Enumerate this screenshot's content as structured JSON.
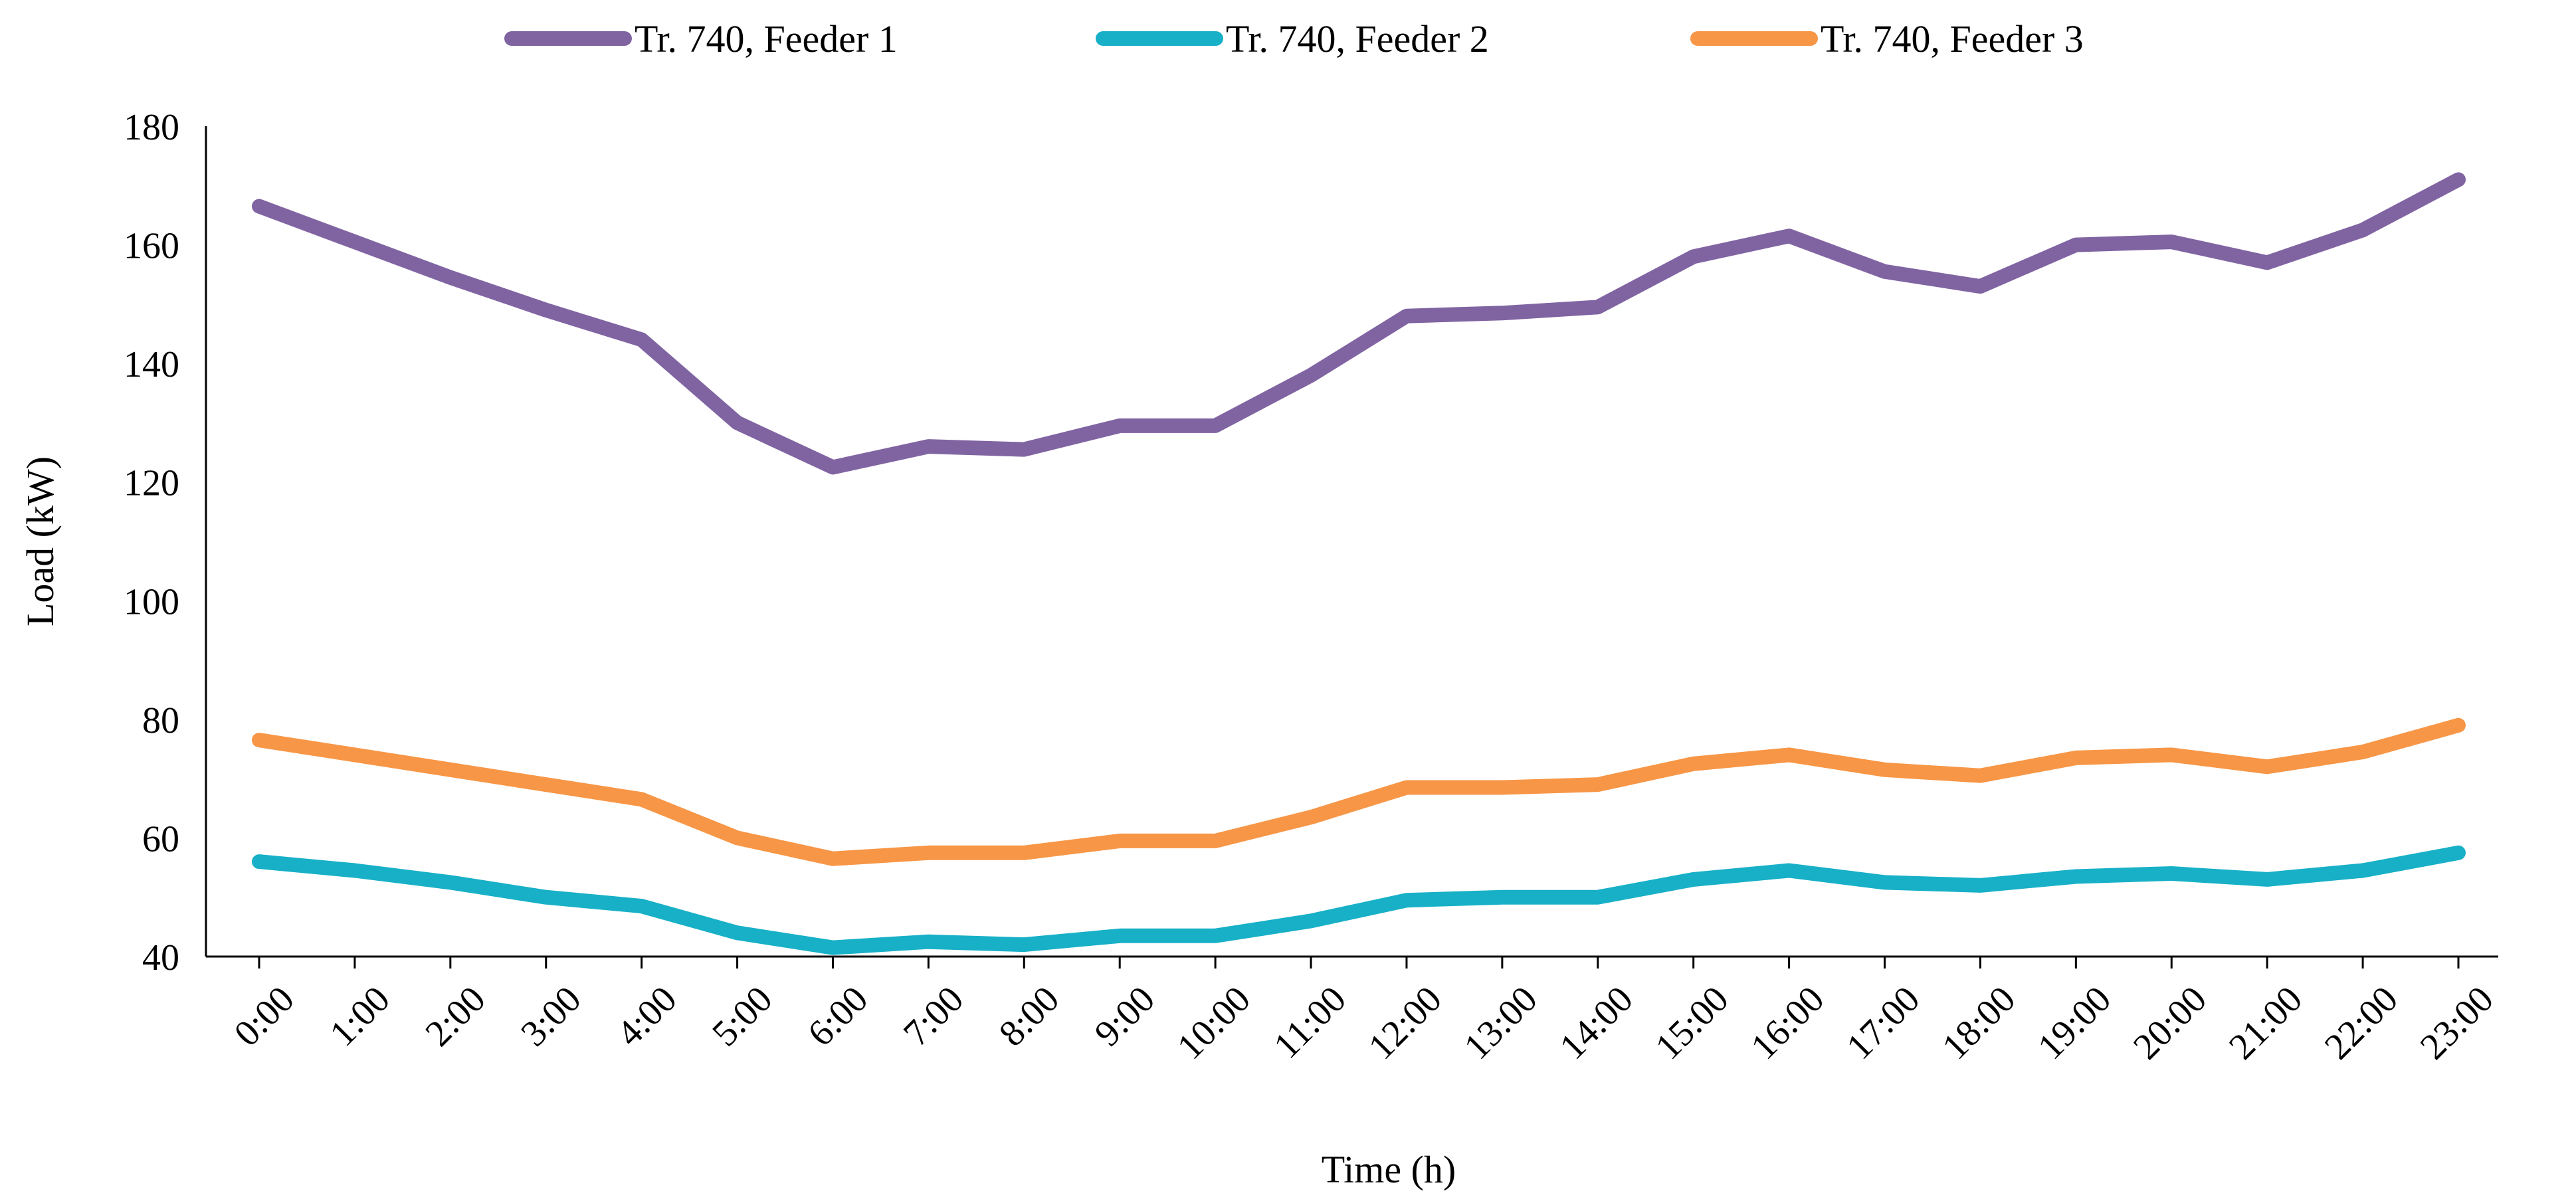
{
  "chart_data": {
    "type": "line",
    "title": "",
    "xlabel": "Time (h)",
    "ylabel": "Load (kW)",
    "ylim": [
      40,
      180
    ],
    "yticks": [
      40,
      60,
      80,
      100,
      120,
      140,
      160,
      180
    ],
    "grid": false,
    "legend_position": "top",
    "categories": [
      "0:00",
      "1:00",
      "2:00",
      "3:00",
      "4:00",
      "5:00",
      "6:00",
      "7:00",
      "8:00",
      "9:00",
      "10:00",
      "11:00",
      "12:00",
      "13:00",
      "14:00",
      "15:00",
      "16:00",
      "17:00",
      "18:00",
      "19:00",
      "20:00",
      "21:00",
      "22:00",
      "23:00"
    ],
    "series": [
      {
        "name": "Tr. 740, Feeder 1",
        "color": "#8064A2",
        "values": [
          166.5,
          160.5,
          154.5,
          149,
          144,
          130,
          122.5,
          126,
          125.5,
          129.5,
          129.5,
          138,
          148,
          148.5,
          149.5,
          158,
          161.5,
          155.5,
          153,
          160,
          160.5,
          157,
          162.5,
          171
        ]
      },
      {
        "name": "Tr. 740, Feeder 2",
        "color": "#17B0C7",
        "values": [
          56,
          54.5,
          52.5,
          50,
          48.5,
          44,
          41.5,
          42.5,
          42,
          43.5,
          43.5,
          46,
          49.5,
          50,
          50,
          53,
          54.5,
          52.5,
          52,
          53.5,
          54,
          53,
          54.5,
          57.5
        ]
      },
      {
        "name": "Tr. 740, Feeder 3",
        "color": "#F79646",
        "values": [
          76.5,
          74,
          71.5,
          69,
          66.5,
          60,
          56.5,
          57.5,
          57.5,
          59.5,
          59.5,
          63.5,
          68.5,
          68.5,
          69,
          72.5,
          74,
          71.5,
          70.5,
          73.5,
          74,
          72,
          74.5,
          79
        ]
      }
    ]
  }
}
